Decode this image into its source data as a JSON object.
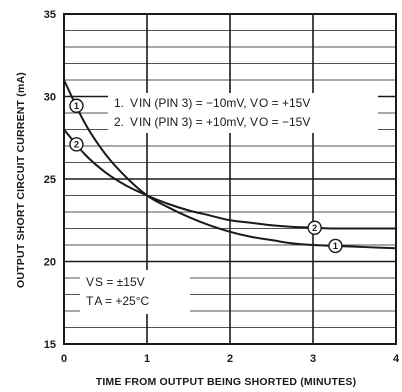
{
  "chart_data": {
    "type": "line",
    "title": "",
    "xlabel": "TIME FROM OUTPUT BEING SHORTED (MINUTES)",
    "ylabel": "OUTPUT SHORT CIRCUIT CURRENT (mA)",
    "xlim": [
      0,
      4
    ],
    "ylim": [
      15,
      35
    ],
    "x_ticks": [
      "0",
      "1",
      "2",
      "3",
      "4"
    ],
    "y_ticks": [
      "15",
      "20",
      "25",
      "30",
      "35"
    ],
    "grid": true,
    "series": [
      {
        "name": "1",
        "x": [
          0,
          0.25,
          0.5,
          0.75,
          1,
          1.25,
          1.5,
          1.75,
          2,
          2.25,
          2.5,
          2.75,
          3,
          3.25,
          3.5,
          3.75,
          4
        ],
        "y": [
          31.0,
          28.4,
          26.5,
          25.1,
          24.0,
          23.3,
          22.7,
          22.2,
          21.8,
          21.5,
          21.3,
          21.1,
          21.0,
          20.95,
          20.9,
          20.85,
          20.8
        ]
      },
      {
        "name": "2",
        "x": [
          0,
          0.25,
          0.5,
          0.75,
          1,
          1.25,
          1.5,
          1.75,
          2,
          2.25,
          2.5,
          2.75,
          3,
          3.25,
          3.5,
          3.75,
          4
        ],
        "y": [
          28.0,
          26.5,
          25.4,
          24.6,
          24.0,
          23.5,
          23.1,
          22.8,
          22.5,
          22.35,
          22.2,
          22.1,
          22.05,
          22.0,
          22.0,
          22.0,
          22.0
        ]
      }
    ],
    "legend": {
      "entries": [
        {
          "num": "1.",
          "text": "V IN (PIN 3) = −10mV, V O = +15V"
        },
        {
          "num": "2.",
          "text": "V IN (PIN 3) = +10mV, V O = −15V"
        }
      ],
      "placement": "top-right"
    },
    "conditions": {
      "vs": "V S = ±15V",
      "ta": "T A = +25°C"
    },
    "marker_labels": [
      "1",
      "2"
    ],
    "colors": {
      "line": "#1a1a1a",
      "grid": "#1a1a1a",
      "background": "#ffffff"
    }
  }
}
